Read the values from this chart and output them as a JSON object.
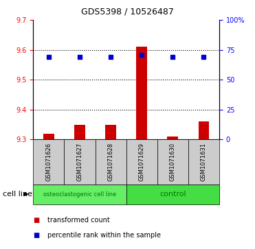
{
  "title": "GDS5398 / 10526487",
  "samples": [
    "GSM1071626",
    "GSM1071627",
    "GSM1071628",
    "GSM1071629",
    "GSM1071630",
    "GSM1071631"
  ],
  "red_values": [
    9.32,
    9.35,
    9.35,
    9.61,
    9.31,
    9.36
  ],
  "blue_values": [
    9.575,
    9.575,
    9.575,
    9.583,
    9.575,
    9.575
  ],
  "ylim_left": [
    9.3,
    9.7
  ],
  "ylim_right": [
    0,
    100
  ],
  "yticks_left": [
    9.3,
    9.4,
    9.5,
    9.6,
    9.7
  ],
  "ytick_labels_right": [
    "0",
    "25",
    "50",
    "75",
    "100%"
  ],
  "group1_label": "osteoclastogenic cell line",
  "group2_label": "control",
  "group1_indices": [
    0,
    1,
    2
  ],
  "group2_indices": [
    3,
    4,
    5
  ],
  "cell_line_label": "cell line",
  "legend_red": "transformed count",
  "legend_blue": "percentile rank within the sample",
  "red_color": "#cc0000",
  "blue_color": "#0000cc",
  "bar_bottom": 9.3,
  "group1_color": "#66ee66",
  "group2_color": "#44dd44",
  "sample_box_color": "#cccccc",
  "bar_width": 0.35,
  "dotted_lines": [
    9.4,
    9.5,
    9.6
  ],
  "title_fontsize": 9,
  "tick_fontsize": 7,
  "sample_fontsize": 6,
  "group_fontsize1": 6,
  "group_fontsize2": 8,
  "legend_fontsize": 7,
  "cell_line_fontsize": 8
}
